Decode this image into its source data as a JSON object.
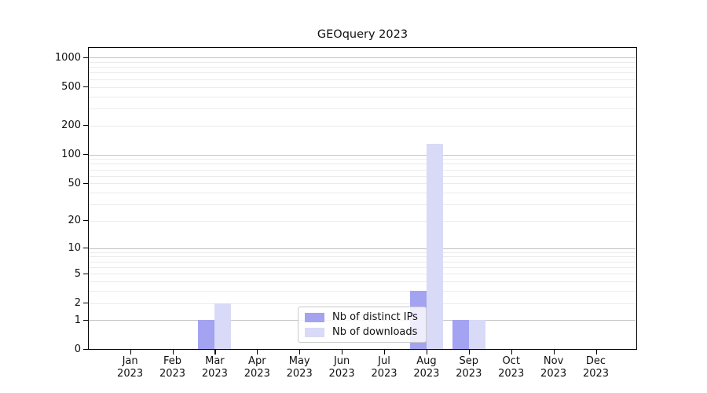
{
  "chart_data": {
    "type": "bar",
    "title": "GEOquery 2023",
    "categories": [
      "Jan 2023",
      "Feb 2023",
      "Mar 2023",
      "Apr 2023",
      "May 2023",
      "Jun 2023",
      "Jul 2023",
      "Aug 2023",
      "Sep 2023",
      "Oct 2023",
      "Nov 2023",
      "Dec 2023"
    ],
    "series": [
      {
        "name": "Nb of distinct IPs",
        "color": "#a3a3f1",
        "values": [
          0,
          0,
          1,
          0,
          0,
          0,
          0,
          3,
          1,
          0,
          0,
          0
        ]
      },
      {
        "name": "Nb of downloads",
        "color": "#d9d9f8",
        "values": [
          0,
          0,
          2,
          0,
          0,
          0,
          0,
          130,
          1,
          0,
          0,
          0
        ]
      }
    ],
    "y_axis": {
      "scale": "log10(value+1)",
      "ticks": [
        0,
        1,
        2,
        5,
        10,
        20,
        50,
        100,
        200,
        500,
        1000
      ],
      "range": [
        0,
        1000
      ],
      "major_gridlines": [
        1,
        10,
        100,
        1000
      ],
      "minor_gridlines": "2-9, 20-90, 200-900"
    },
    "legend": {
      "position": "lower-center-inside",
      "entries": [
        "Nb of distinct IPs",
        "Nb of downloads"
      ]
    },
    "colors": {
      "distinct_ips_bar": "#a3a3f1",
      "downloads_bar": "#d9d9f8",
      "major_grid": "#c3c3c3",
      "minor_grid": "#ebebeb",
      "frame": "#000000",
      "background": "#ffffff"
    },
    "grid": true
  }
}
